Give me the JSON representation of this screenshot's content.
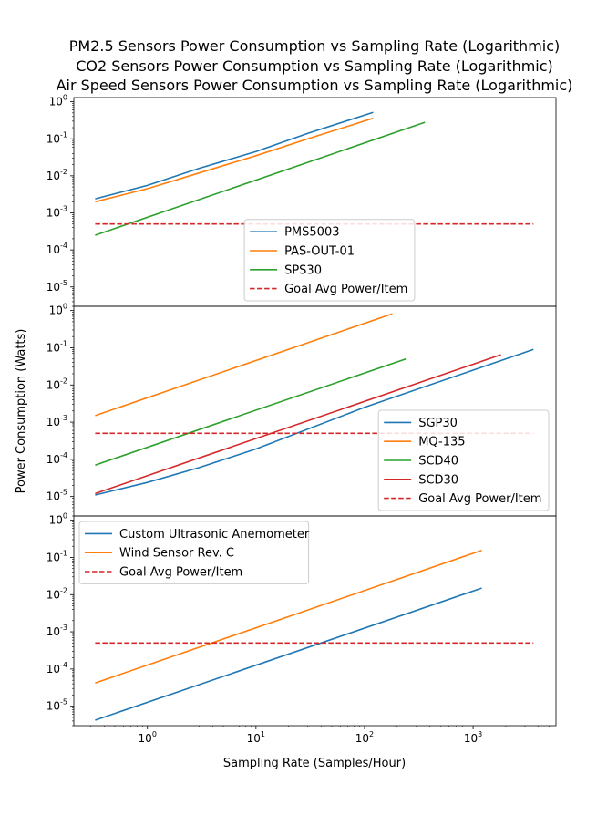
{
  "figure": {
    "titles": [
      "PM2.5 Sensors Power Consumption vs Sampling Rate (Logarithmic)",
      "CO2 Sensors Power Consumption vs Sampling Rate (Logarithmic)",
      "Air Speed Sensors Power Consumption vs Sampling Rate (Logarithmic)"
    ],
    "ylabel": "Power Consumption (Watts)",
    "xlabel": "Sampling Rate (Samples/Hour)",
    "colors": {
      "blue": "#1f77b4",
      "orange": "#ff7f0e",
      "green": "#2ca02c",
      "red": "#d62728",
      "goal": "#d62728"
    }
  },
  "chart_data": [
    {
      "type": "line",
      "title": "PM2.5 Sensors Power Consumption vs Sampling Rate (Logarithmic)",
      "xscale": "log",
      "yscale": "log",
      "xlim": [
        0.21,
        5800
      ],
      "ylim": [
        3e-06,
        1.3
      ],
      "legend_position": "lower-center",
      "series": [
        {
          "name": "PMS5003",
          "color": "#1f77b4",
          "dashed": false,
          "x": [
            0.33,
            1,
            3,
            10,
            30,
            120
          ],
          "y": [
            0.0024,
            0.0055,
            0.016,
            0.045,
            0.14,
            0.52
          ]
        },
        {
          "name": "PAS-OUT-01",
          "color": "#ff7f0e",
          "dashed": false,
          "x": [
            0.33,
            1,
            3,
            10,
            30,
            120
          ],
          "y": [
            0.002,
            0.0045,
            0.012,
            0.035,
            0.1,
            0.36
          ]
        },
        {
          "name": "SPS30",
          "color": "#2ca02c",
          "dashed": false,
          "x": [
            0.33,
            360
          ],
          "y": [
            0.00025,
            0.28
          ]
        },
        {
          "name": "Goal Avg Power/Item",
          "color": "#d62728",
          "dashed": true,
          "x": [
            0.33,
            3600
          ],
          "y": [
            0.0005,
            0.0005
          ]
        }
      ]
    },
    {
      "type": "line",
      "title": "CO2 Sensors Power Consumption vs Sampling Rate (Logarithmic)",
      "xscale": "log",
      "yscale": "log",
      "xlim": [
        0.21,
        5800
      ],
      "ylim": [
        3e-06,
        1.3
      ],
      "legend_position": "lower-right",
      "series": [
        {
          "name": "SGP30",
          "color": "#1f77b4",
          "dashed": false,
          "x": [
            0.33,
            1,
            3,
            10,
            100,
            1000,
            3600
          ],
          "y": [
            1.1e-05,
            2.4e-05,
            6e-05,
            0.00019,
            0.0025,
            0.025,
            0.09
          ]
        },
        {
          "name": "MQ-135",
          "color": "#ff7f0e",
          "dashed": false,
          "x": [
            0.33,
            180
          ],
          "y": [
            0.0015,
            0.82
          ]
        },
        {
          "name": "SCD40",
          "color": "#2ca02c",
          "dashed": false,
          "x": [
            0.33,
            240
          ],
          "y": [
            7e-05,
            0.05
          ]
        },
        {
          "name": "SCD30",
          "color": "#d62728",
          "dashed": false,
          "x": [
            0.33,
            1800
          ],
          "y": [
            1.2e-05,
            0.065
          ]
        },
        {
          "name": "Goal Avg Power/Item",
          "color": "#d62728",
          "dashed": true,
          "x": [
            0.33,
            3600
          ],
          "y": [
            0.0005,
            0.0005
          ]
        }
      ]
    },
    {
      "type": "line",
      "title": "Air Speed Sensors Power Consumption vs Sampling Rate (Logarithmic)",
      "xscale": "log",
      "yscale": "log",
      "xlim": [
        0.21,
        5800
      ],
      "ylim": [
        3e-06,
        1.3
      ],
      "legend_position": "upper-left",
      "series": [
        {
          "name": "Custom Ultrasonic Anemometer",
          "color": "#1f77b4",
          "dashed": false,
          "x": [
            0.33,
            1200
          ],
          "y": [
            4.2e-06,
            0.015
          ]
        },
        {
          "name": "Wind Sensor Rev. C",
          "color": "#ff7f0e",
          "dashed": false,
          "x": [
            0.33,
            1200
          ],
          "y": [
            4.2e-05,
            0.155
          ]
        },
        {
          "name": "Goal Avg Power/Item",
          "color": "#d62728",
          "dashed": true,
          "x": [
            0.33,
            3600
          ],
          "y": [
            0.0005,
            0.0005
          ]
        }
      ]
    }
  ]
}
